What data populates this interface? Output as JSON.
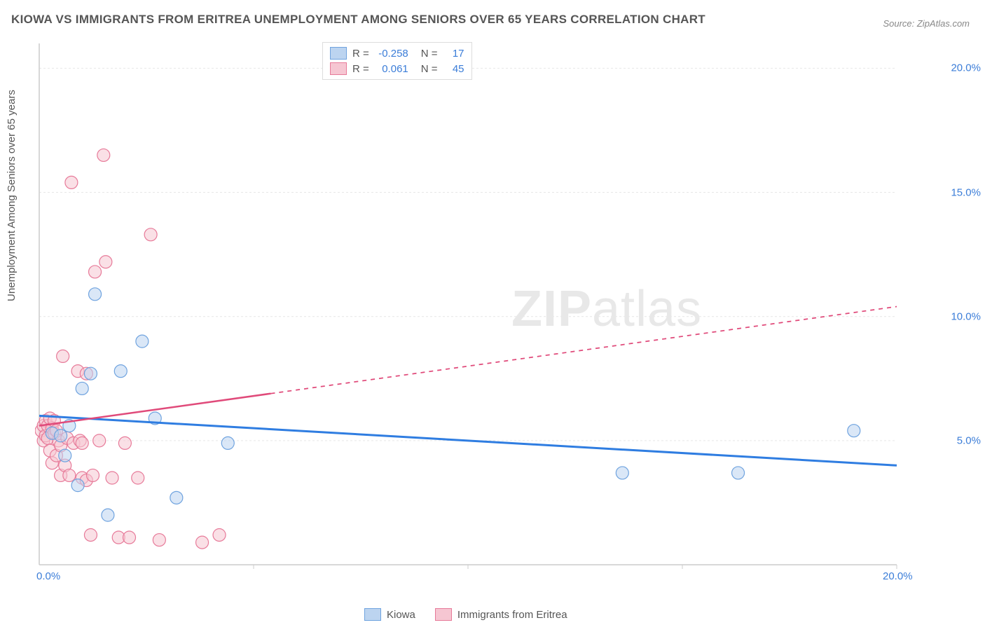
{
  "title": "KIOWA VS IMMIGRANTS FROM ERITREA UNEMPLOYMENT AMONG SENIORS OVER 65 YEARS CORRELATION CHART",
  "source": "Source: ZipAtlas.com",
  "y_axis_label": "Unemployment Among Seniors over 65 years",
  "watermark": {
    "bold": "ZIP",
    "rest": "atlas"
  },
  "chart": {
    "type": "scatter",
    "xlim": [
      0,
      20
    ],
    "ylim": [
      0,
      21
    ],
    "x_ticks": [
      0,
      5,
      10,
      15,
      20
    ],
    "x_tick_labels": {
      "0": "0.0%",
      "20": "20.0%"
    },
    "y_ticks": [
      5,
      10,
      15,
      20
    ],
    "y_tick_labels": {
      "5": "5.0%",
      "10": "10.0%",
      "15": "15.0%",
      "20": "20.0%"
    },
    "grid_color": "#e6e6e6",
    "axis_color": "#cccccc",
    "background_color": "#ffffff",
    "series": [
      {
        "name": "Kiowa",
        "color_fill": "#bcd4f0",
        "color_stroke": "#6fa3df",
        "marker_radius": 9,
        "fill_opacity": 0.55,
        "R": "-0.258",
        "N": "17",
        "trend": {
          "x1": 0,
          "y1": 6.0,
          "x2": 20,
          "y2": 4.0,
          "solid_until": 20,
          "color": "#2f7de1",
          "width": 3
        },
        "points": [
          [
            0.3,
            5.3
          ],
          [
            0.5,
            5.2
          ],
          [
            0.6,
            4.4
          ],
          [
            0.7,
            5.6
          ],
          [
            0.9,
            3.2
          ],
          [
            1.0,
            7.1
          ],
          [
            1.2,
            7.7
          ],
          [
            1.3,
            10.9
          ],
          [
            1.6,
            2.0
          ],
          [
            1.9,
            7.8
          ],
          [
            2.4,
            9.0
          ],
          [
            2.7,
            5.9
          ],
          [
            3.2,
            2.7
          ],
          [
            4.4,
            4.9
          ],
          [
            13.6,
            3.7
          ],
          [
            16.3,
            3.7
          ],
          [
            19.0,
            5.4
          ]
        ]
      },
      {
        "name": "Immigrants from Eritrea",
        "color_fill": "#f6c6d2",
        "color_stroke": "#e77a99",
        "marker_radius": 9,
        "fill_opacity": 0.55,
        "R": "0.061",
        "N": "45",
        "trend": {
          "x1": 0,
          "y1": 5.6,
          "x2": 20,
          "y2": 10.4,
          "solid_until": 5.4,
          "color": "#e04a7a",
          "width": 2.5
        },
        "points": [
          [
            0.05,
            5.4
          ],
          [
            0.1,
            5.6
          ],
          [
            0.1,
            5.0
          ],
          [
            0.15,
            5.8
          ],
          [
            0.15,
            5.2
          ],
          [
            0.2,
            5.6
          ],
          [
            0.2,
            5.1
          ],
          [
            0.25,
            5.9
          ],
          [
            0.25,
            4.6
          ],
          [
            0.3,
            5.5
          ],
          [
            0.3,
            4.1
          ],
          [
            0.35,
            5.3
          ],
          [
            0.35,
            5.8
          ],
          [
            0.4,
            4.4
          ],
          [
            0.4,
            5.4
          ],
          [
            0.45,
            5.0
          ],
          [
            0.5,
            3.6
          ],
          [
            0.5,
            4.8
          ],
          [
            0.55,
            8.4
          ],
          [
            0.6,
            4.0
          ],
          [
            0.65,
            5.1
          ],
          [
            0.7,
            3.6
          ],
          [
            0.75,
            15.4
          ],
          [
            0.8,
            4.9
          ],
          [
            0.9,
            7.8
          ],
          [
            0.95,
            5.0
          ],
          [
            1.0,
            3.5
          ],
          [
            1.0,
            4.9
          ],
          [
            1.1,
            7.7
          ],
          [
            1.1,
            3.4
          ],
          [
            1.2,
            1.2
          ],
          [
            1.25,
            3.6
          ],
          [
            1.3,
            11.8
          ],
          [
            1.4,
            5.0
          ],
          [
            1.5,
            16.5
          ],
          [
            1.55,
            12.2
          ],
          [
            1.7,
            3.5
          ],
          [
            1.85,
            1.1
          ],
          [
            2.0,
            4.9
          ],
          [
            2.1,
            1.1
          ],
          [
            2.3,
            3.5
          ],
          [
            2.6,
            13.3
          ],
          [
            2.8,
            1.0
          ],
          [
            3.8,
            0.9
          ],
          [
            4.2,
            1.2
          ]
        ]
      }
    ]
  },
  "legend_bottom": [
    {
      "label": "Kiowa",
      "fill": "#bcd4f0",
      "stroke": "#6fa3df"
    },
    {
      "label": "Immigrants from Eritrea",
      "fill": "#f6c6d2",
      "stroke": "#e77a99"
    }
  ]
}
